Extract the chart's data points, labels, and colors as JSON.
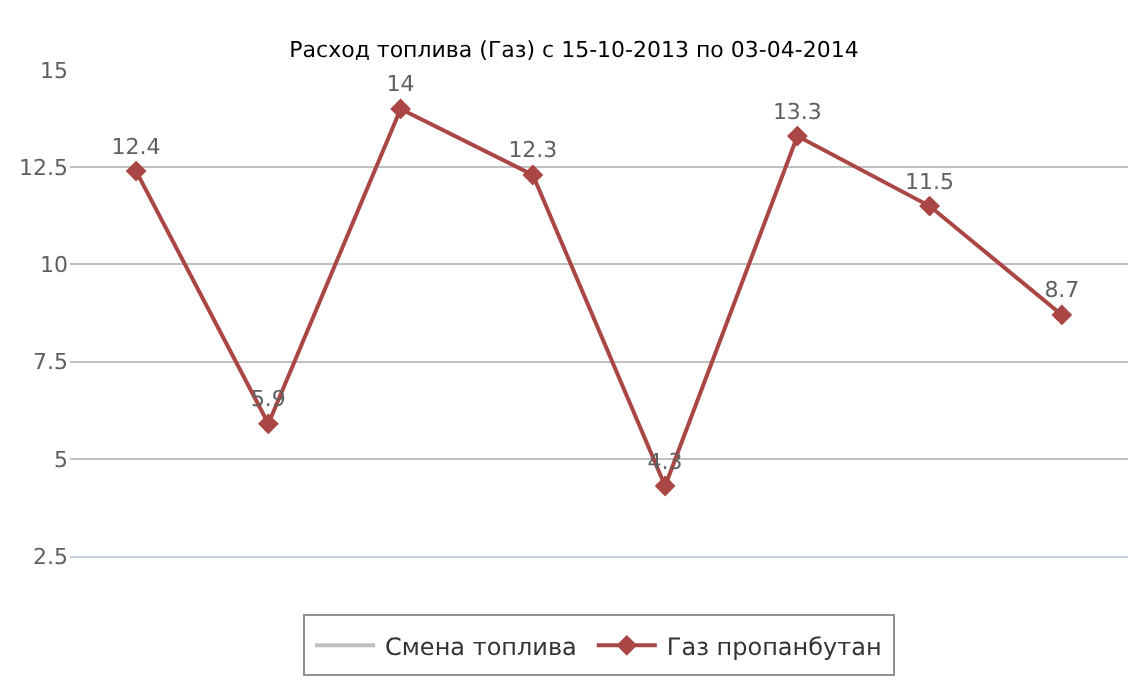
{
  "chart_data": {
    "type": "line",
    "title": "Расход топлива (Газ) с 15-10-2013 по 03-04-2014",
    "categories": [
      null,
      null,
      null,
      null,
      null,
      null,
      null,
      null
    ],
    "series": [
      {
        "name": "Смена топлива",
        "color": "#c0c0c0",
        "values": [
          null,
          null,
          null,
          null,
          null,
          null,
          null,
          null
        ],
        "marker": "none"
      },
      {
        "name": "Газ пропанбутан",
        "color": "#aa4643",
        "values": [
          12.4,
          5.9,
          14,
          12.3,
          4.3,
          13.3,
          11.5,
          8.7
        ],
        "marker": "diamond"
      }
    ],
    "ylim": [
      2.5,
      15
    ],
    "yticks": [
      2.5,
      5,
      7.5,
      10,
      12.5,
      15
    ],
    "grid": "y",
    "legend": "bottom",
    "data_labels": true,
    "line_style": "solid"
  }
}
